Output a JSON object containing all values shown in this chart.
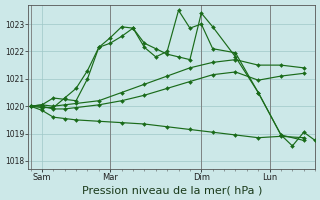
{
  "background_color": "#cce8e8",
  "grid_color": "#9fc8c8",
  "line_color": "#1a6b1a",
  "xlabel": "Pression niveau de la mer( hPa )",
  "xlabel_fontsize": 8,
  "yticks": [
    1018,
    1019,
    1020,
    1021,
    1022,
    1023
  ],
  "ylim": [
    1017.7,
    1023.7
  ],
  "xtick_labels": [
    "Sam",
    "Mar",
    "Dim",
    "Lun"
  ],
  "xtick_positions": [
    0.5,
    3.5,
    7.5,
    10.5
  ],
  "xlim": [
    -0.1,
    12.5
  ],
  "series1": {
    "x": [
      0,
      0.5,
      1,
      1.5,
      2,
      3,
      4,
      5,
      6,
      7,
      8,
      9,
      10,
      11,
      12
    ],
    "y": [
      1020.0,
      1019.85,
      1019.6,
      1019.55,
      1019.5,
      1019.45,
      1019.4,
      1019.35,
      1019.25,
      1019.15,
      1019.05,
      1018.95,
      1018.85,
      1018.9,
      1018.85
    ]
  },
  "series2": {
    "x": [
      0,
      0.5,
      1,
      1.5,
      2,
      3,
      4,
      5,
      6,
      7,
      8,
      9,
      10,
      11,
      12
    ],
    "y": [
      1020.0,
      1020.0,
      1019.9,
      1019.9,
      1019.95,
      1020.05,
      1020.2,
      1020.4,
      1020.65,
      1020.9,
      1021.15,
      1021.25,
      1020.95,
      1021.1,
      1021.2
    ]
  },
  "series3": {
    "x": [
      0,
      0.5,
      1,
      1.5,
      2,
      3,
      4,
      5,
      6,
      7,
      8,
      9,
      10,
      11,
      12
    ],
    "y": [
      1020.0,
      1020.05,
      1020.0,
      1020.05,
      1020.1,
      1020.2,
      1020.5,
      1020.8,
      1021.1,
      1021.4,
      1021.6,
      1021.7,
      1021.5,
      1021.5,
      1021.4
    ]
  },
  "series4": {
    "x": [
      0,
      0.5,
      1,
      1.5,
      2,
      2.5,
      3,
      3.5,
      4,
      4.5,
      5,
      5.5,
      6,
      6.5,
      7,
      7.5,
      8,
      9,
      10,
      11,
      12
    ],
    "y": [
      1020.0,
      1019.95,
      1019.95,
      1020.3,
      1020.65,
      1021.3,
      1022.15,
      1022.3,
      1022.55,
      1022.85,
      1022.3,
      1022.1,
      1021.9,
      1021.8,
      1021.7,
      1023.4,
      1022.9,
      1021.8,
      1020.5,
      1018.95,
      1018.75
    ]
  },
  "series5": {
    "x": [
      0,
      0.5,
      1,
      1.5,
      2,
      2.5,
      3,
      3.5,
      4,
      4.5,
      5,
      5.5,
      6,
      6.5,
      7,
      7.5,
      8,
      9,
      10,
      11,
      11.5,
      12,
      12.5
    ],
    "y": [
      1020.0,
      1020.05,
      1020.3,
      1020.25,
      1020.2,
      1021.0,
      1022.15,
      1022.5,
      1022.9,
      1022.85,
      1022.15,
      1021.8,
      1022.0,
      1023.5,
      1022.85,
      1023.0,
      1022.1,
      1021.95,
      1020.5,
      1018.95,
      1018.55,
      1019.05,
      1018.75
    ]
  },
  "vlines": [
    0,
    3.5,
    7.5,
    10.5
  ],
  "marker": "D",
  "markersize": 2.0,
  "linewidth": 0.85
}
